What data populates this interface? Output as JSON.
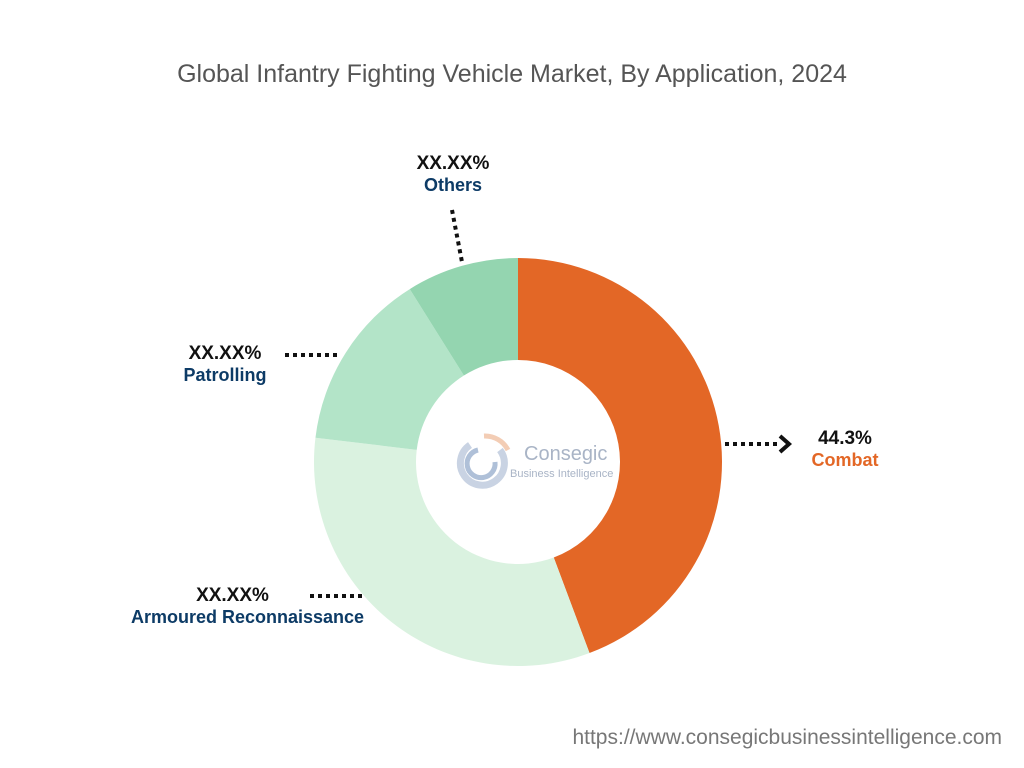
{
  "chart_data": {
    "type": "pie",
    "title": "Global Infantry Fighting Vehicle Market, By Application, 2024",
    "donut": true,
    "categories": [
      "Combat",
      "Armoured Reconnaissance",
      "Patrolling",
      "Others"
    ],
    "values": [
      44.3,
      32.6,
      14.2,
      8.9
    ],
    "labels": [
      "44.3%",
      "XX.XX%",
      "XX.XX%",
      "XX.XX%"
    ],
    "colors": [
      "#E36726",
      "#DAF2E0",
      "#B3E4C8",
      "#94D5B0"
    ],
    "label_colors": [
      "#E36726",
      "#0D3B66",
      "#0D3B66",
      "#0D3B66"
    ]
  },
  "logo": {
    "name": "Consegic",
    "tagline": "Business Intelligence"
  },
  "footer_url": "https://www.consegicbusinessintelligence.com"
}
